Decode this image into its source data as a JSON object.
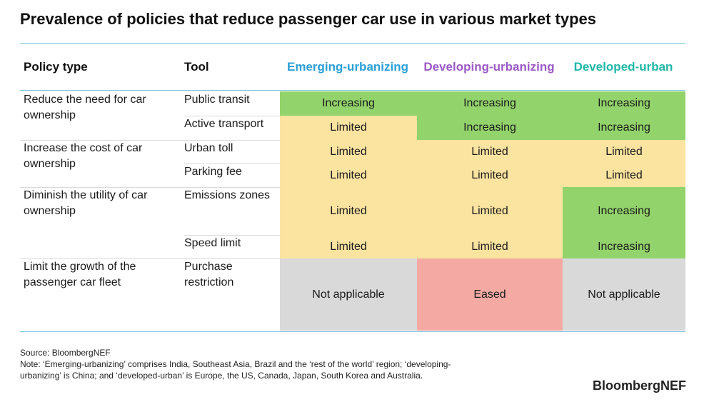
{
  "title": "Prevalence of policies that reduce passenger car use in various market types",
  "chart_data": {
    "type": "table",
    "columns": [
      "Policy type",
      "Tool",
      "Emerging-urbanizing",
      "Developing-urbanizing",
      "Developed-urban"
    ],
    "groups": [
      {
        "policy": "Reduce the need for car ownership",
        "tools": [
          {
            "tool": "Public transit",
            "values": [
              "Increasing",
              "Increasing",
              "Increasing"
            ]
          },
          {
            "tool": "Active transport",
            "values": [
              "Limited",
              "Increasing",
              "Increasing"
            ]
          }
        ]
      },
      {
        "policy": "Increase the cost of car ownership",
        "tools": [
          {
            "tool": "Urban toll",
            "values": [
              "Limited",
              "Limited",
              "Limited"
            ]
          },
          {
            "tool": "Parking fee",
            "values": [
              "Limited",
              "Limited",
              "Limited"
            ]
          }
        ]
      },
      {
        "policy": "Diminish the utility of car ownership",
        "tools": [
          {
            "tool": "Emissions zones",
            "values": [
              "Limited",
              "Limited",
              "Increasing"
            ]
          },
          {
            "tool": "Speed limit",
            "values": [
              "Limited",
              "Limited",
              "Increasing"
            ]
          }
        ]
      },
      {
        "policy": "Limit the growth of the passenger car fleet",
        "tools": [
          {
            "tool": "Purchase restriction",
            "values": [
              "Not applicable",
              "Eased",
              "Not applicable"
            ]
          }
        ]
      }
    ],
    "status_colors": {
      "Increasing": "#93d36b",
      "Limited": "#fbe3a0",
      "Not applicable": "#d9d9d9",
      "Eased": "#f4aaa3"
    },
    "header_colors": {
      "Emerging-urbanizing": "#2a9fd6",
      "Developing-urbanizing": "#9b59c6",
      "Developed-urban": "#1fb7a6"
    }
  },
  "footer": {
    "source": "Source: BloombergNEF",
    "note": "Note: ‘Emerging-urbanizing’ comprises India, Southeast Asia, Brazil and the ‘rest of the world’ region; ‘developing-urbanizing’ is China; and ‘developed-urban’ is Europe, the US, Canada, Japan, South Korea and Australia.",
    "brand": "BloombergNEF"
  }
}
